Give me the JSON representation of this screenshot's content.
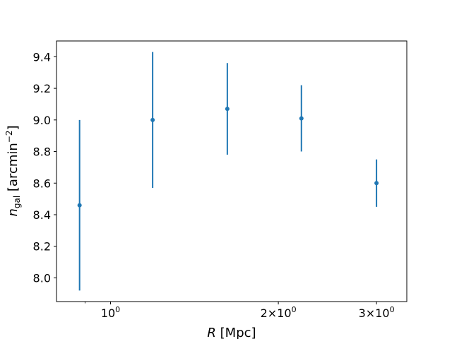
{
  "chart_data": {
    "type": "scatter",
    "title": "",
    "xlabel": {
      "var": "R",
      "unit": " [Mpc]"
    },
    "ylabel": {
      "var": "n",
      "sub": "gal",
      "unit_pre": " [arcmin",
      "unit_sup": "−2",
      "unit_post": "]"
    },
    "x_scale": "log",
    "xlim": [
      0.8,
      3.4
    ],
    "ylim": [
      7.85,
      9.5
    ],
    "x_ticks_major": [
      {
        "value": 1,
        "base": "10",
        "exp": "0"
      },
      {
        "value": 2,
        "base": "2×10",
        "exp": "0"
      },
      {
        "value": 3,
        "base": "3×10",
        "exp": "0"
      }
    ],
    "x_ticks_minor": [
      0.9
    ],
    "y_ticks": [
      "8.0",
      "8.2",
      "8.4",
      "8.6",
      "8.8",
      "9.0",
      "9.2",
      "9.4"
    ],
    "grid": false,
    "color": "#1f77b4",
    "series": [
      {
        "points": [
          {
            "x": 0.88,
            "y": 8.46,
            "yerr_low": 7.92,
            "yerr_high": 9.0
          },
          {
            "x": 1.19,
            "y": 9.0,
            "yerr_low": 8.57,
            "yerr_high": 9.43
          },
          {
            "x": 1.62,
            "y": 9.07,
            "yerr_low": 8.78,
            "yerr_high": 9.36
          },
          {
            "x": 2.2,
            "y": 9.01,
            "yerr_low": 8.8,
            "yerr_high": 9.22
          },
          {
            "x": 3.0,
            "y": 8.6,
            "yerr_low": 8.45,
            "yerr_high": 8.75
          }
        ]
      }
    ]
  }
}
